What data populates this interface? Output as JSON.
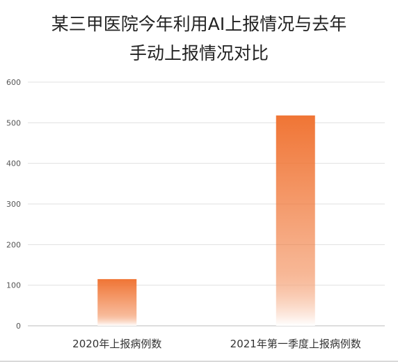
{
  "colors": {
    "bar_top": "#f07535",
    "bar_bottom": "#ffffff",
    "grid": "#e0e0e0",
    "axis": "#bbbbbb",
    "tick_text": "#555555",
    "cat_text": "#333333"
  },
  "chart_data": {
    "type": "bar",
    "title_lines": [
      "某三甲医院今年利用AI上报情况与去年",
      "手动上报情况对比"
    ],
    "categories": [
      "2020年上报病例数",
      "2021年第一季度上报病例数"
    ],
    "values": [
      115,
      518
    ],
    "ylim": [
      0,
      600
    ],
    "yticks": [
      0,
      100,
      200,
      300,
      400,
      500,
      600
    ],
    "grid": true,
    "legend": "none"
  }
}
